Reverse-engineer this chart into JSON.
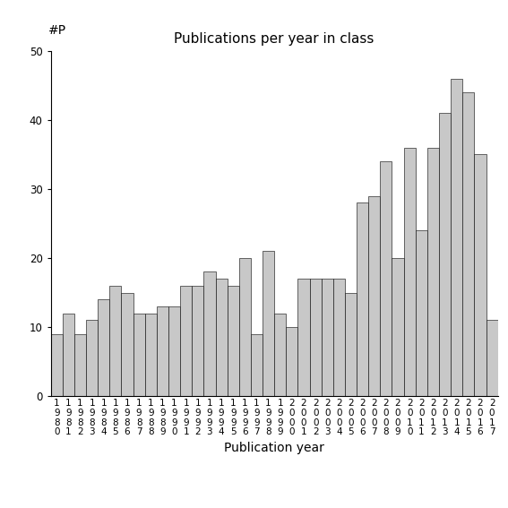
{
  "title": "Publications per year in class",
  "xlabel": "Publication year",
  "ylabel": "#P",
  "bar_color": "#c8c8c8",
  "bar_edgecolor": "#000000",
  "ylim": [
    0,
    50
  ],
  "yticks": [
    0,
    10,
    20,
    30,
    40,
    50
  ],
  "years": [
    1980,
    1981,
    1982,
    1983,
    1984,
    1985,
    1986,
    1987,
    1988,
    1989,
    1990,
    1991,
    1992,
    1993,
    1994,
    1995,
    1996,
    1997,
    1998,
    1999,
    2000,
    2001,
    2002,
    2003,
    2004,
    2005,
    2006,
    2007,
    2008,
    2009,
    2010,
    2011,
    2012,
    2013,
    2014,
    2015,
    2016,
    2017
  ],
  "values": [
    9,
    12,
    9,
    11,
    14,
    16,
    15,
    12,
    12,
    13,
    13,
    16,
    16,
    18,
    17,
    16,
    20,
    9,
    21,
    12,
    10,
    17,
    17,
    17,
    17,
    15,
    28,
    29,
    34,
    20,
    36,
    24,
    36,
    41,
    46,
    44,
    35,
    11
  ],
  "title_fontsize": 11,
  "xlabel_fontsize": 10,
  "ylabel_fontsize": 10,
  "tick_fontsize": 8.5,
  "xtick_fontsize": 7.5
}
